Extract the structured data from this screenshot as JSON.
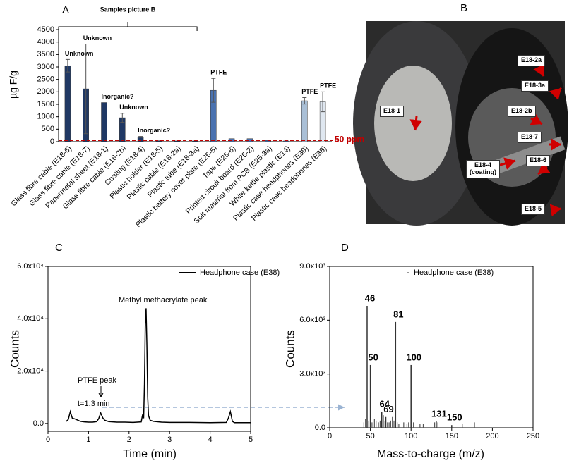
{
  "chart_data": [
    {
      "panel": "A",
      "type": "bar",
      "ylabel": "µg F/g",
      "bracket_label": "Samples picture B",
      "categories": [
        "Glass fibre cable (E18-6)",
        "Glass fibre cable (E18-7)",
        "Papermetal sheet (E18-1)",
        "Glass fibre cable (E18-2b)",
        "Coating (E18-4)",
        "Plastic holder (E18-5)",
        "Plastic cable (E18-2a)",
        "Plastic tube (E18-3a)",
        "Plastic battery cover plate (E25-5)",
        "Tape (E25-6)",
        "Printed circuit board (E25-2)",
        "Soft material from PCB (E25-3a)",
        "White kettle plastic (E14)",
        "Plastic case headphones (E39)",
        "Plastic case headphones (E38)"
      ],
      "values": [
        3050,
        2120,
        1570,
        960,
        190,
        40,
        30,
        30,
        2060,
        120,
        120,
        50,
        30,
        1640,
        1600
      ],
      "errors": [
        250,
        1800,
        null,
        180,
        20,
        null,
        null,
        null,
        480,
        null,
        null,
        null,
        null,
        130,
        400
      ],
      "bar_labels": [
        "Unknown",
        "Unknown",
        "Inorganic?",
        "Unknown",
        "Inorganic?",
        null,
        null,
        null,
        "PTFE",
        null,
        null,
        null,
        null,
        "PTFE",
        "PTFE"
      ],
      "colors": [
        "#1f3864",
        "#1f3864",
        "#1f3864",
        "#1f3864",
        "#1f3864",
        "#1f3864",
        "#1f3864",
        "#1f3864",
        "#4a72b0",
        "#4a72b0",
        "#4a72b0",
        "#4a72b0",
        "#4a72b0",
        "#a9bfd6",
        "#dfe7f0"
      ],
      "threshold": {
        "value": 50,
        "label": "50 ppm",
        "color": "#c00000"
      },
      "ylim": [
        0,
        4500
      ],
      "yticks": [
        0,
        500,
        1000,
        1500,
        2000,
        2500,
        3000,
        3500,
        4000,
        4500
      ]
    },
    {
      "panel": "C",
      "type": "line",
      "xlabel": "Time (min)",
      "ylabel": "Counts",
      "annotations": [
        "Methyl methacrylate peak",
        "PTFE peak",
        "t=1.3 min"
      ],
      "x": [
        0.45,
        0.5,
        0.55,
        0.6,
        0.65,
        0.7,
        0.8,
        0.9,
        1.0,
        1.1,
        1.2,
        1.25,
        1.3,
        1.35,
        1.4,
        1.5,
        1.7,
        1.9,
        2.1,
        2.3,
        2.33,
        2.36,
        2.38,
        2.4,
        2.42,
        2.44,
        2.46,
        2.48,
        2.52,
        2.6,
        2.8,
        3.0,
        3.5,
        4.0,
        4.4,
        4.45,
        4.5,
        4.55,
        4.6,
        4.8,
        5.0
      ],
      "series": [
        {
          "name": "Headphone case (E38)",
          "color": "#000000",
          "values": [
            800,
            1500,
            4500,
            2000,
            1800,
            1500,
            800,
            600,
            500,
            500,
            700,
            1800,
            4000,
            2200,
            1200,
            700,
            500,
            500,
            400,
            600,
            3000,
            2000,
            15000,
            38000,
            44000,
            30000,
            10000,
            3000,
            1200,
            800,
            500,
            400,
            400,
            300,
            400,
            2000,
            4500,
            800,
            300,
            300,
            300
          ]
        }
      ],
      "xlim": [
        0,
        5
      ],
      "xticks": [
        0,
        1,
        2,
        3,
        4,
        5
      ],
      "ylim": [
        -3000,
        60000
      ],
      "yticks": [
        {
          "value": 0,
          "label": "0.0"
        },
        {
          "value": 20000,
          "label": "2.0x10⁴"
        },
        {
          "value": 40000,
          "label": "4.0x10⁴"
        },
        {
          "value": 60000,
          "label": "6.0x10⁴"
        }
      ]
    },
    {
      "panel": "D",
      "type": "stem",
      "xlabel": "Mass-to-charge (m/z)",
      "ylabel": "Counts",
      "series": [
        {
          "name": "Headphone case (E38)",
          "color": "#333333",
          "x": [
            46,
            50,
            64,
            69,
            81,
            100,
            131,
            150
          ],
          "values": [
            6800,
            3500,
            900,
            600,
            5900,
            3500,
            350,
            150
          ]
        }
      ],
      "minor": {
        "x": [
          42,
          44,
          48,
          52,
          55,
          57,
          60,
          62,
          66,
          68,
          71,
          73,
          75,
          77,
          79,
          83,
          85,
          91,
          95,
          97,
          103,
          111,
          115,
          129,
          133,
          163,
          178
        ],
        "values": [
          300,
          500,
          400,
          300,
          500,
          400,
          300,
          400,
          700,
          400,
          300,
          300,
          400,
          600,
          400,
          300,
          200,
          300,
          200,
          300,
          300,
          200,
          200,
          300,
          300,
          200,
          300
        ]
      },
      "xlim": [
        0,
        250
      ],
      "xticks": [
        0,
        50,
        100,
        150,
        200,
        250
      ],
      "ylim": [
        0,
        9000
      ],
      "yticks": [
        {
          "value": 0,
          "label": "0.0"
        },
        {
          "value": 3000,
          "label": "3.0x10³"
        },
        {
          "value": 6000,
          "label": "6.0x10³"
        },
        {
          "value": 9000,
          "label": "9.0x10³"
        }
      ]
    }
  ],
  "photo": {
    "panel": "B",
    "labels": [
      "E18-2a",
      "E18-3a",
      "E18-1",
      "E18-2b",
      "E18-7",
      "E18-6",
      "E18-4\n(coating)",
      "E18-5"
    ]
  }
}
